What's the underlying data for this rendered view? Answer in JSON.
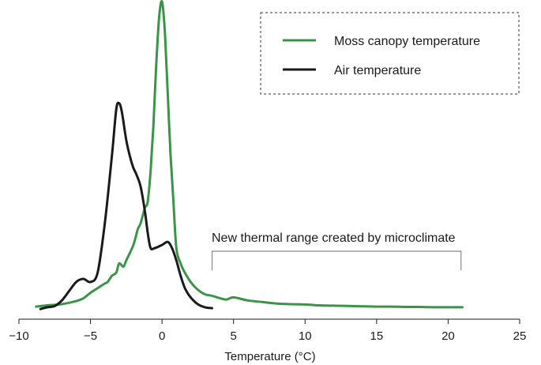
{
  "chart_data": {
    "type": "line",
    "title": "",
    "xlabel": "Temperature (°C)",
    "ylabel": "",
    "xlim": [
      -10,
      25
    ],
    "ylim": [
      0,
      1
    ],
    "xticks": [
      -10,
      -5,
      0,
      5,
      10,
      15,
      20,
      25
    ],
    "xtick_labels": [
      "−10",
      "−5",
      "0",
      "5",
      "10",
      "15",
      "20",
      "25"
    ],
    "grid": false,
    "legend": {
      "placement": "top-right",
      "border": "dashed"
    },
    "series": [
      {
        "name": "Moss canopy temperature",
        "color": "#3a9447",
        "x": [
          -8.8,
          -8,
          -7,
          -6,
          -5.5,
          -5,
          -4.5,
          -4,
          -3.8,
          -3.5,
          -3.2,
          -3,
          -2.7,
          -2.5,
          -2,
          -1.7,
          -1.5,
          -1.2,
          -1,
          -0.8,
          -0.6,
          -0.4,
          -0.2,
          0,
          0.2,
          0.4,
          0.6,
          0.8,
          1,
          1.3,
          1.6,
          2,
          2.5,
          3,
          3.5,
          4,
          4.5,
          5,
          6,
          7,
          8,
          9,
          10,
          11,
          12,
          13,
          14,
          15,
          16,
          17,
          18,
          19,
          20,
          21
        ],
        "y": [
          0.01,
          0.014,
          0.018,
          0.028,
          0.037,
          0.055,
          0.07,
          0.085,
          0.09,
          0.11,
          0.12,
          0.15,
          0.14,
          0.16,
          0.21,
          0.26,
          0.28,
          0.33,
          0.35,
          0.45,
          0.6,
          0.8,
          0.95,
          1.0,
          0.9,
          0.7,
          0.5,
          0.35,
          0.2,
          0.15,
          0.12,
          0.09,
          0.065,
          0.05,
          0.045,
          0.038,
          0.033,
          0.04,
          0.03,
          0.025,
          0.02,
          0.018,
          0.017,
          0.014,
          0.013,
          0.012,
          0.011,
          0.01,
          0.01,
          0.009,
          0.009,
          0.008,
          0.008,
          0.008
        ]
      },
      {
        "name": "Air temperature",
        "color": "#1a1a1a",
        "x": [
          -8.5,
          -8,
          -7.5,
          -7,
          -6.5,
          -6,
          -5.5,
          -5,
          -4.5,
          -4,
          -3.5,
          -3.2,
          -3,
          -2.8,
          -2.5,
          -2.2,
          -2,
          -1.8,
          -1.5,
          -1.2,
          -1,
          -0.8,
          -0.5,
          0,
          0.4,
          0.7,
          1,
          1.3,
          1.6,
          2,
          2.5,
          3,
          3.5
        ],
        "y": [
          0.002,
          0.008,
          0.012,
          0.03,
          0.06,
          0.09,
          0.1,
          0.09,
          0.12,
          0.28,
          0.5,
          0.65,
          0.67,
          0.64,
          0.55,
          0.49,
          0.46,
          0.44,
          0.4,
          0.32,
          0.25,
          0.2,
          0.2,
          0.21,
          0.22,
          0.2,
          0.16,
          0.11,
          0.07,
          0.04,
          0.018,
          0.008,
          0.005
        ]
      }
    ],
    "annotations": [
      {
        "text": "New thermal range created by microclimate",
        "x_start": 3.5,
        "x_end": 20.9
      }
    ]
  }
}
